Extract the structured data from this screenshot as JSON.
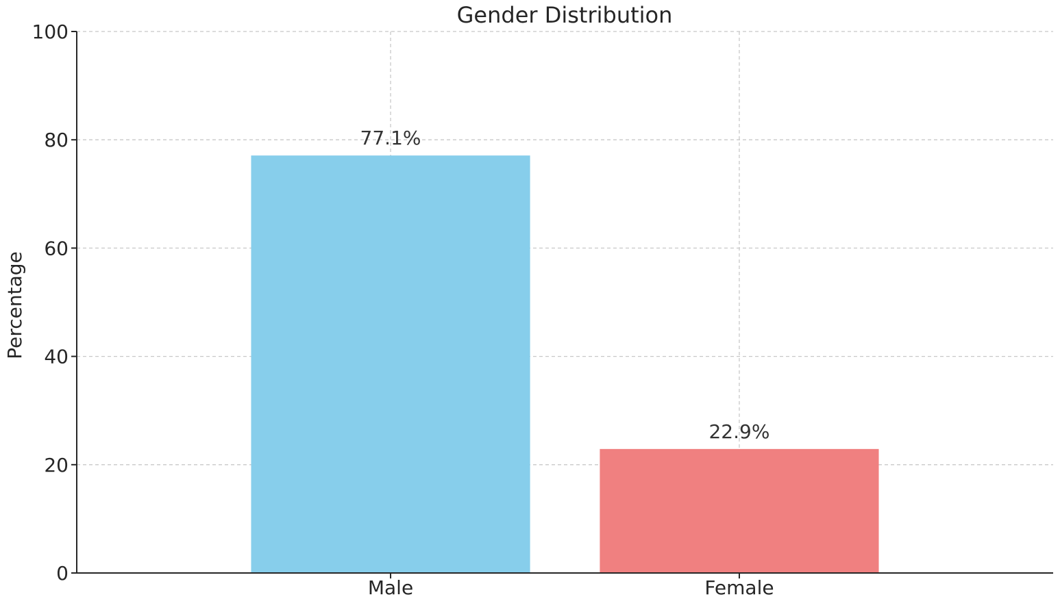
{
  "chart_data": {
    "type": "bar",
    "title": "Gender Distribution",
    "xlabel": "",
    "ylabel": "Percentage",
    "categories": [
      "Male",
      "Female"
    ],
    "values": [
      77.1,
      22.9
    ],
    "value_labels": [
      "77.1%",
      "22.9%"
    ],
    "colors": [
      "#87CEEB",
      "#F08080"
    ],
    "ylim": [
      0,
      100
    ],
    "yticks": [
      0,
      20,
      40,
      60,
      80,
      100
    ],
    "ytick_labels": [
      "0",
      "20",
      "40",
      "60",
      "80",
      "100"
    ],
    "grid": true,
    "legend": "none"
  }
}
